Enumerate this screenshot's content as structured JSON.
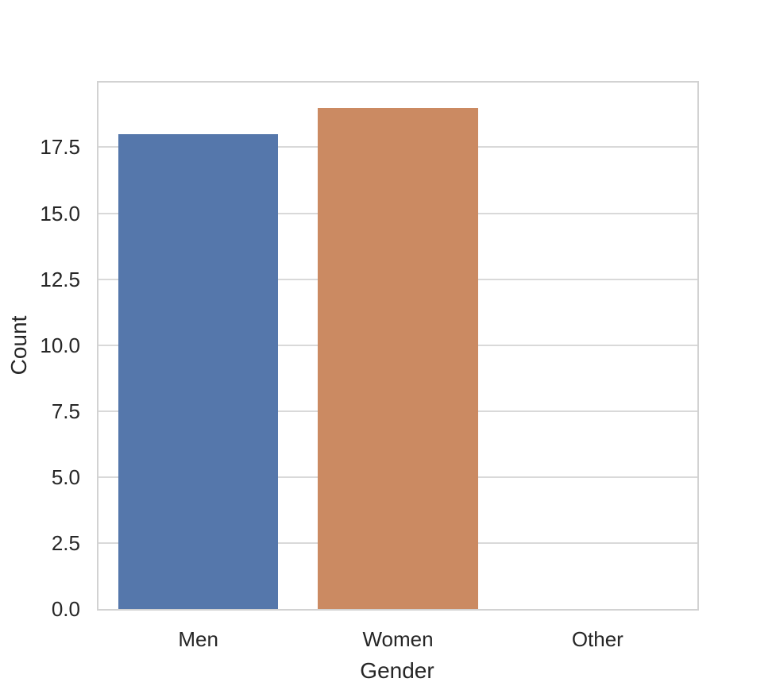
{
  "chart_data": {
    "type": "bar",
    "title": "",
    "xlabel": "Gender",
    "ylabel": "Count",
    "categories": [
      "Men",
      "Women",
      "Other"
    ],
    "values": [
      18,
      19,
      0
    ],
    "bar_colors": [
      "#5577AB",
      "#CB8A62",
      null
    ],
    "yticks": [
      0.0,
      2.5,
      5.0,
      7.5,
      10.0,
      12.5,
      15.0,
      17.5
    ],
    "ytick_labels": [
      "0.0",
      "2.5",
      "5.0",
      "7.5",
      "10.0",
      "12.5",
      "15.0",
      "17.5"
    ],
    "ylim": [
      0,
      19.95
    ],
    "bar_width_fraction": 0.8,
    "grid": "horizontal-only",
    "legend": "none",
    "style": {
      "background_color": "#FFFFFF",
      "grid_color": "#D9D9D9",
      "spine_color": "#D2D2D2",
      "text_color": "#262626"
    }
  }
}
